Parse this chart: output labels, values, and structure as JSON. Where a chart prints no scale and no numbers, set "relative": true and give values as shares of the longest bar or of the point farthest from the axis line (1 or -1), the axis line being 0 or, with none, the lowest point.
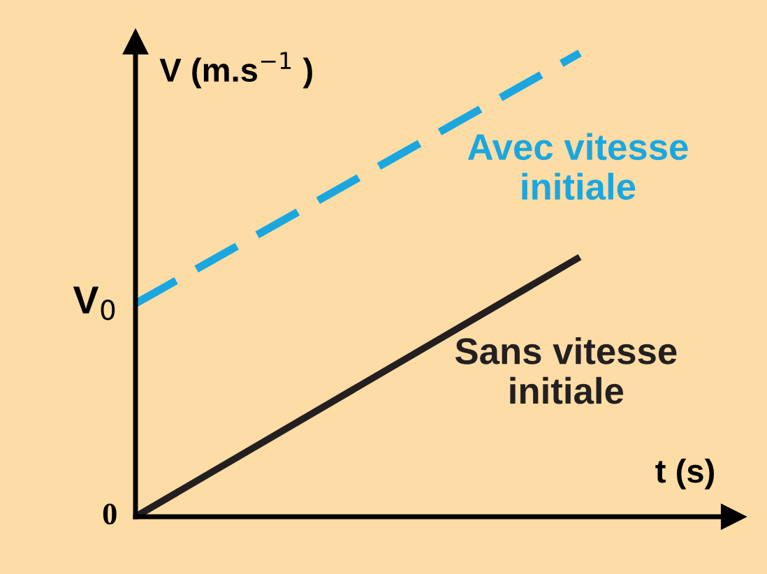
{
  "chart_data": {
    "type": "line",
    "relative": true,
    "categories": [
      null,
      null
    ],
    "xlabel": "t (s)",
    "ylabel": "V (m.s$^{−1}$ )",
    "series": [
      {
        "name": "Avec vitesse initiale",
        "color": "#1aa7e0",
        "values": [
          0.46,
          1.0
        ],
        "line_style": "dashed"
      },
      {
        "name": "Sans vitesse initiale",
        "color": "#231f20",
        "values": [
          0,
          0.56
        ],
        "line_style": "solid"
      }
    ],
    "annotations": [
      "0",
      "V$_{0}$"
    ],
    "legend": false,
    "marker": "none"
  }
}
